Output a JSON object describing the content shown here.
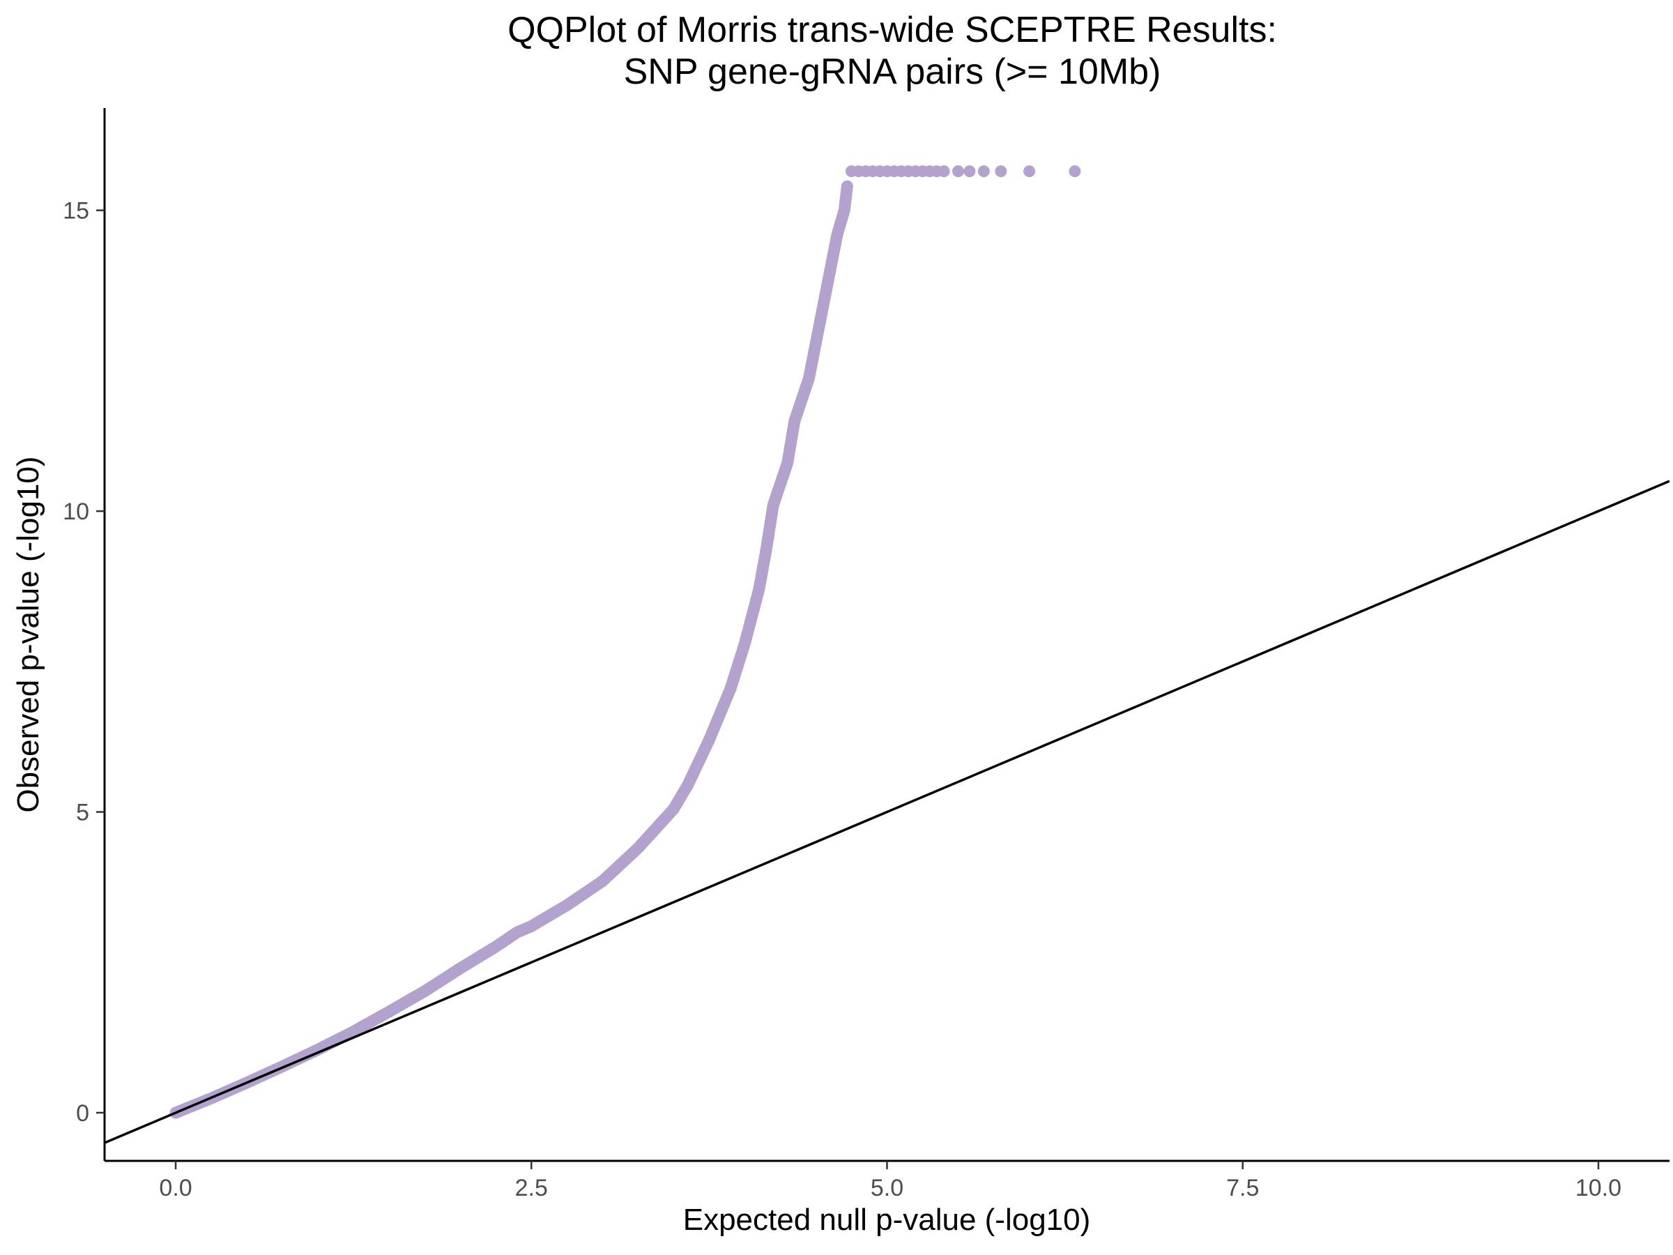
{
  "chart_data": {
    "type": "scatter",
    "title": [
      "QQPlot of Morris trans-wide SCEPTRE Results:",
      "SNP gene-gRNA pairs (>= 10Mb)"
    ],
    "xlabel": "Expected null p-value (-log10)",
    "ylabel": "Observed p-value (-log10)",
    "xlim": [
      -0.5,
      10.5
    ],
    "ylim": [
      -0.8,
      16.7
    ],
    "x_ticks": [
      0.0,
      2.5,
      5.0,
      7.5,
      10.0
    ],
    "x_tick_labels": [
      "0.0",
      "2.5",
      "5.0",
      "7.5",
      "10.0"
    ],
    "y_ticks": [
      0,
      5,
      10,
      15
    ],
    "y_tick_labels": [
      "0",
      "5",
      "10",
      "15"
    ],
    "grid": false,
    "legend": "none",
    "point_color": "#b3a2cd",
    "reference_line": {
      "slope": 1,
      "intercept": 0,
      "color": "#000000"
    },
    "series": [
      {
        "curve": [
          [
            0.0,
            0.0
          ],
          [
            0.25,
            0.24
          ],
          [
            0.5,
            0.5
          ],
          [
            0.75,
            0.77
          ],
          [
            1.0,
            1.05
          ],
          [
            1.25,
            1.35
          ],
          [
            1.5,
            1.68
          ],
          [
            1.75,
            2.02
          ],
          [
            2.0,
            2.4
          ],
          [
            2.25,
            2.76
          ],
          [
            2.4,
            3.0
          ],
          [
            2.5,
            3.1
          ],
          [
            2.75,
            3.45
          ],
          [
            3.0,
            3.85
          ],
          [
            3.25,
            4.4
          ],
          [
            3.5,
            5.05
          ],
          [
            3.6,
            5.45
          ],
          [
            3.75,
            6.2
          ],
          [
            3.9,
            7.05
          ],
          [
            4.0,
            7.8
          ],
          [
            4.1,
            8.7
          ],
          [
            4.15,
            9.35
          ],
          [
            4.2,
            10.1
          ],
          [
            4.3,
            10.8
          ],
          [
            4.35,
            11.5
          ],
          [
            4.45,
            12.2
          ],
          [
            4.5,
            12.8
          ],
          [
            4.55,
            13.4
          ],
          [
            4.6,
            14.0
          ],
          [
            4.65,
            14.6
          ],
          [
            4.7,
            15.0
          ],
          [
            4.72,
            15.4
          ]
        ],
        "plateau_y": 15.65,
        "plateau_x": [
          4.75,
          4.8,
          4.85,
          4.9,
          4.95,
          5.0,
          5.05,
          5.1,
          5.15,
          5.2,
          5.25,
          5.3,
          5.35,
          5.4,
          5.5,
          5.58,
          5.68,
          5.8,
          6.0,
          6.32
        ]
      }
    ]
  }
}
